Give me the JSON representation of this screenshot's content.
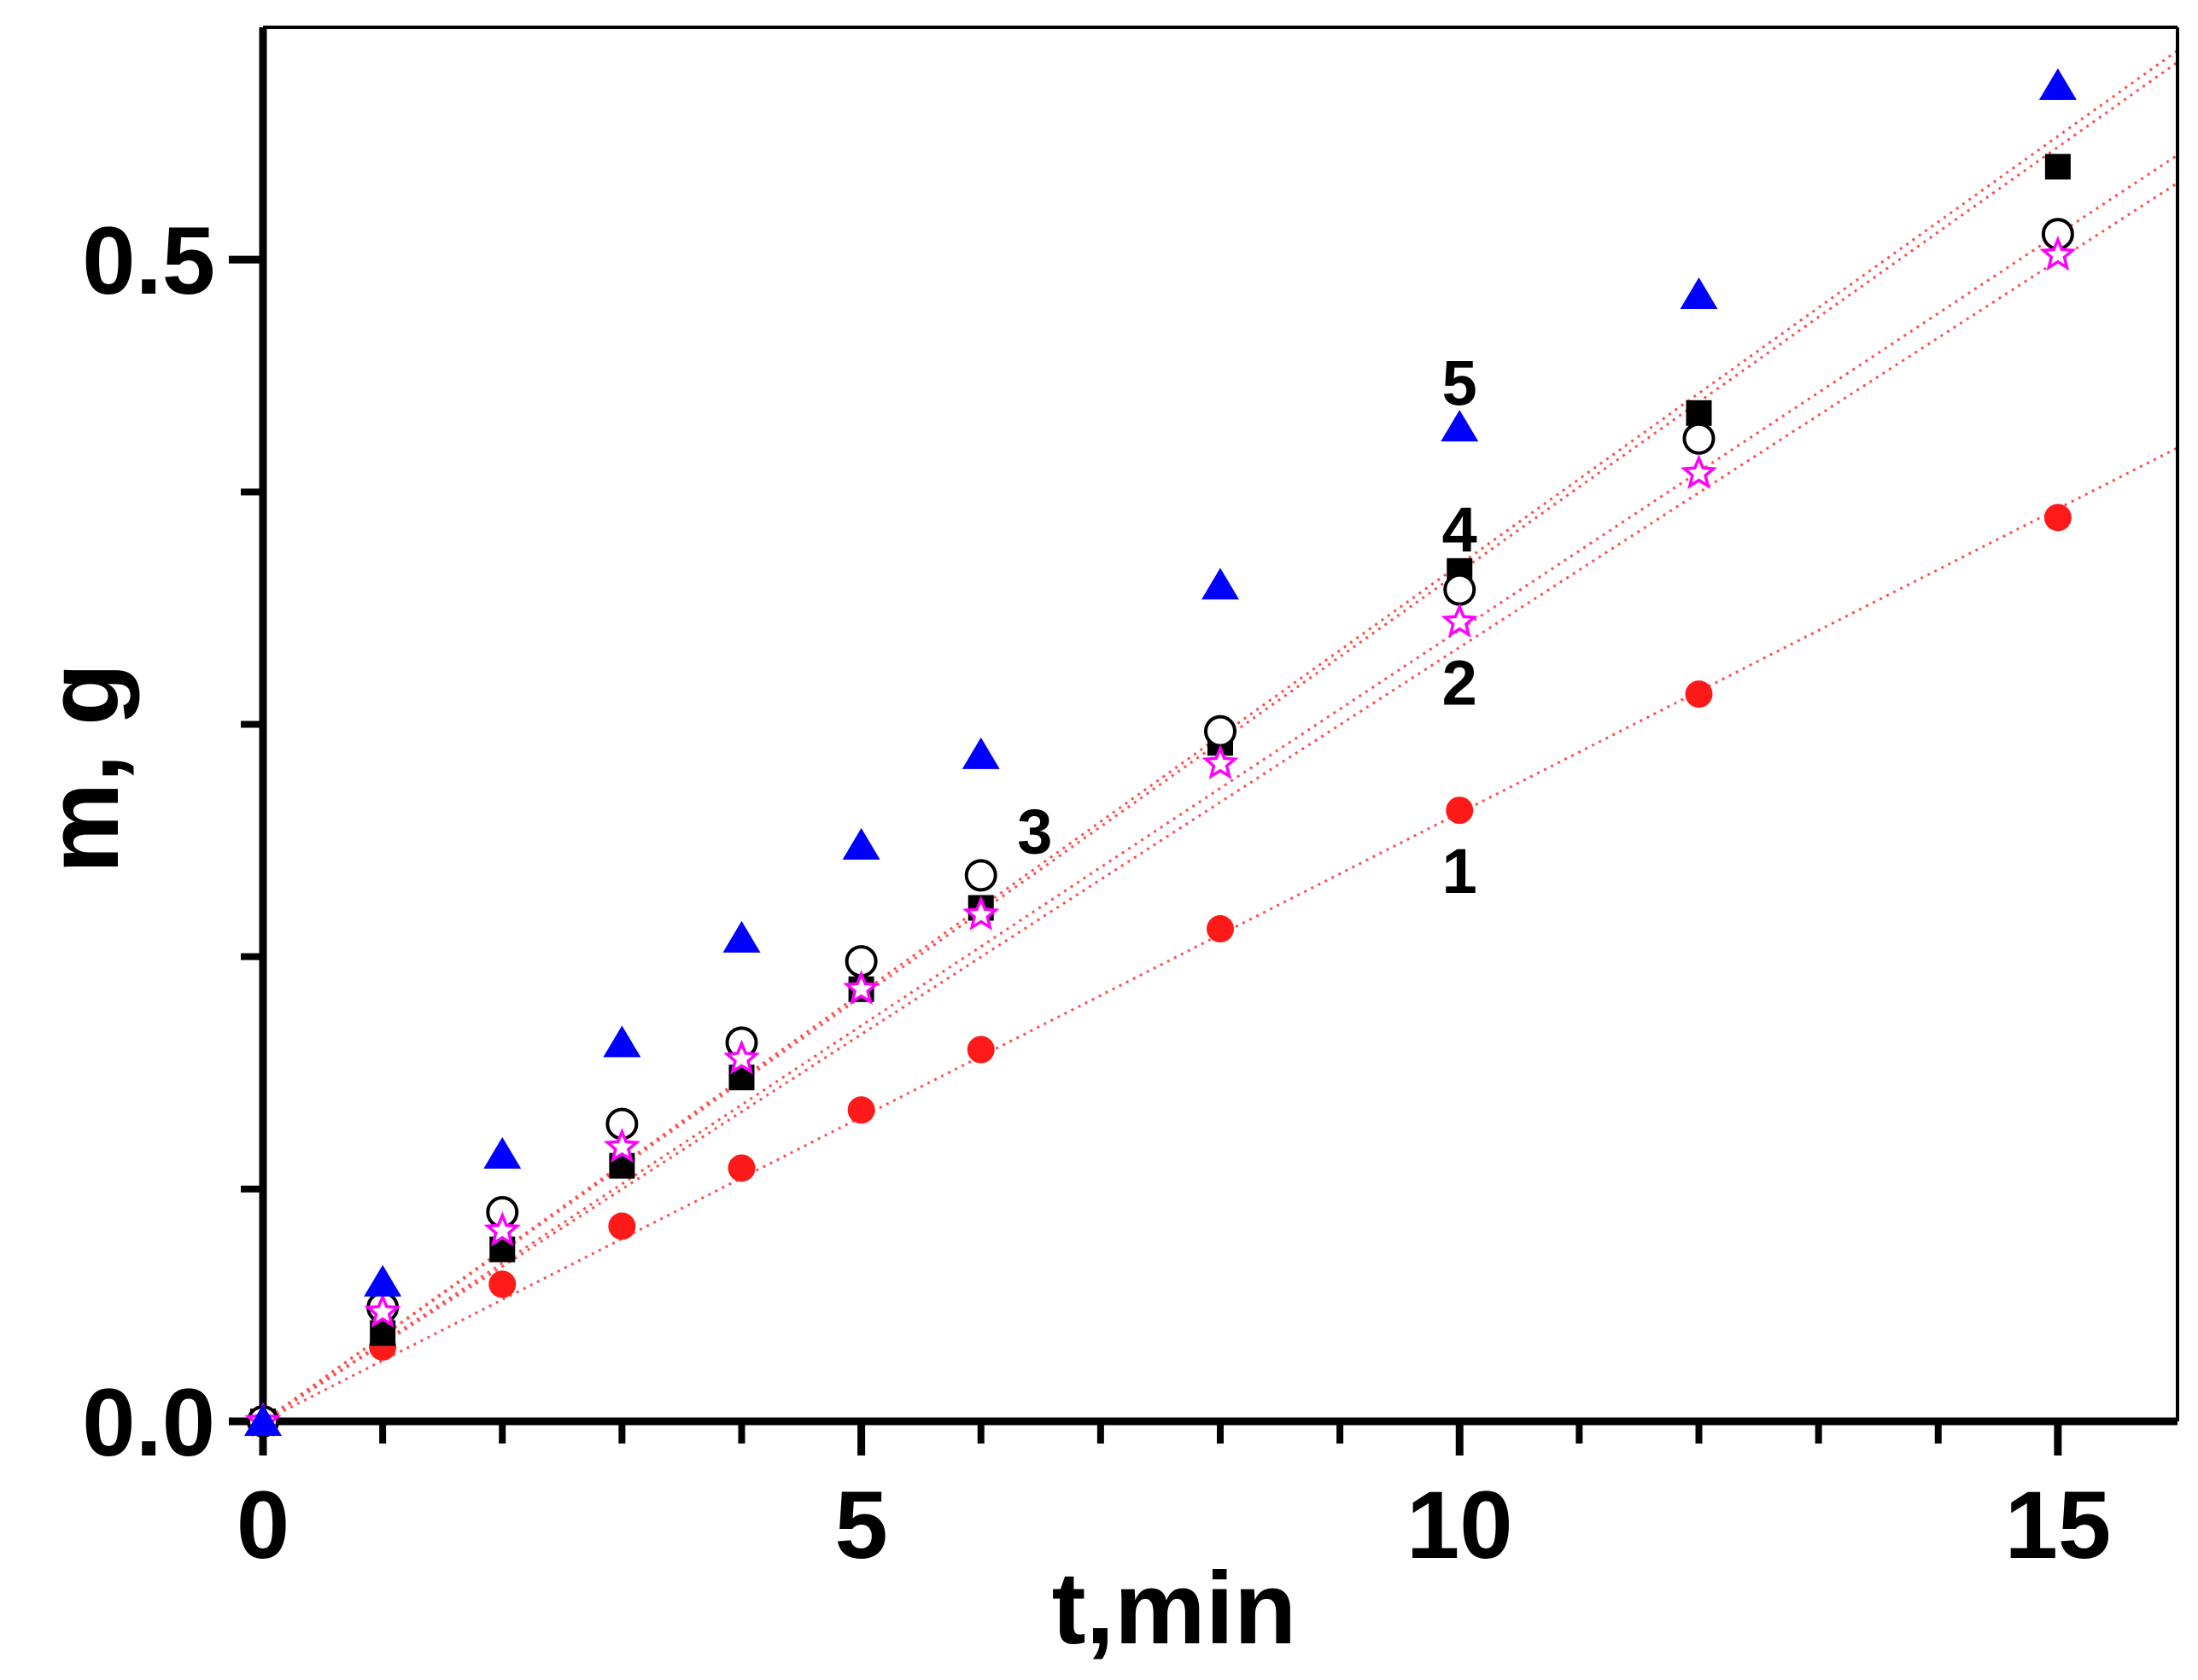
{
  "chart_data": {
    "type": "scatter",
    "title": "",
    "xlabel": "t,min",
    "ylabel": "m, g",
    "xlim": [
      0,
      16
    ],
    "ylim": [
      0,
      0.6
    ],
    "x_ticks": [
      0,
      5,
      10,
      15
    ],
    "x_tick_labels": [
      "0",
      "5",
      "10",
      "15"
    ],
    "y_ticks": [
      0.0,
      0.5
    ],
    "y_tick_labels": [
      "0.0",
      "0.5"
    ],
    "x_minor_ticks": [
      1,
      2,
      3,
      4,
      6,
      7,
      8,
      9,
      11,
      12,
      13,
      14
    ],
    "y_minor_ticks": [
      0.1,
      0.2,
      0.3,
      0.4
    ],
    "grid": false,
    "series": [
      {
        "name": "1",
        "marker": "filled-circle",
        "color": "#ff1a1a",
        "x": [
          0,
          1,
          2,
          3,
          4,
          5,
          6,
          8,
          10,
          12,
          15
        ],
        "y": [
          0.0,
          0.032,
          0.059,
          0.084,
          0.109,
          0.134,
          0.16,
          0.212,
          0.263,
          0.313,
          0.389
        ],
        "fit": [
          [
            0,
            0.0
          ],
          [
            16,
            0.419
          ]
        ]
      },
      {
        "name": "2",
        "marker": "open-star",
        "color": "#ff00ff",
        "x": [
          0,
          1,
          2,
          3,
          4,
          5,
          6,
          8,
          10,
          12,
          15
        ],
        "y": [
          0.0,
          0.047,
          0.082,
          0.118,
          0.156,
          0.186,
          0.218,
          0.283,
          0.344,
          0.408,
          0.502
        ],
        "fit": [
          [
            0,
            0.0
          ],
          [
            16,
            0.533
          ]
        ]
      },
      {
        "name": "3",
        "marker": "open-circle",
        "color": "#000000",
        "x": [
          0,
          1,
          2,
          3,
          4,
          5,
          6,
          8,
          10,
          12,
          15
        ],
        "y": [
          0.0,
          0.049,
          0.09,
          0.128,
          0.163,
          0.198,
          0.235,
          0.297,
          0.358,
          0.423,
          0.511
        ],
        "fit": [
          [
            0,
            0.0
          ],
          [
            16,
            0.545
          ]
        ]
      },
      {
        "name": "4",
        "marker": "filled-square",
        "color": "#000000",
        "x": [
          0,
          1,
          2,
          3,
          4,
          5,
          6,
          8,
          10,
          12,
          15
        ],
        "y": [
          0.0,
          0.038,
          0.074,
          0.11,
          0.148,
          0.186,
          0.221,
          0.292,
          0.366,
          0.434,
          0.54
        ],
        "fit": [
          [
            0,
            0.0
          ],
          [
            16,
            0.585
          ]
        ]
      },
      {
        "name": "5",
        "marker": "filled-triangle",
        "color": "#0000ff",
        "x": [
          0,
          1,
          2,
          3,
          4,
          5,
          6,
          8,
          10,
          12,
          15
        ],
        "y": [
          0.0,
          0.06,
          0.115,
          0.163,
          0.208,
          0.248,
          0.287,
          0.36,
          0.428,
          0.485,
          0.575
        ],
        "fit": [
          [
            0,
            0.0
          ],
          [
            16,
            0.59
          ]
        ]
      }
    ],
    "annotations": [
      {
        "text": "5",
        "x": 10.0,
        "y": 0.447
      },
      {
        "text": "4",
        "x": 10.0,
        "y": 0.384
      },
      {
        "text": "2",
        "x": 10.0,
        "y": 0.318
      },
      {
        "text": "3",
        "x": 6.45,
        "y": 0.254
      },
      {
        "text": "1",
        "x": 10.0,
        "y": 0.237
      }
    ],
    "fit_color": "#ff4d4d"
  }
}
